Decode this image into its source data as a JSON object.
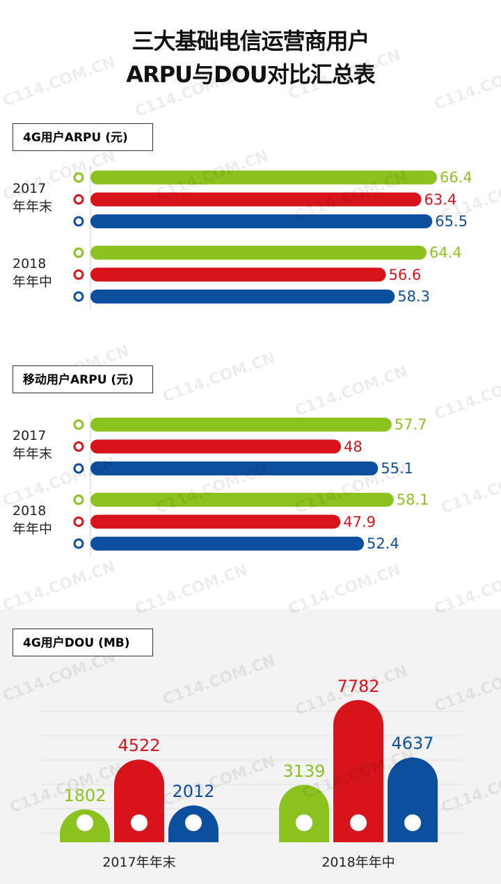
{
  "title": {
    "line1": "三大基础电信运营商用户",
    "line2": "ARPU与DOU对比汇总表"
  },
  "watermark": "C114.COM.CN",
  "chart_data": [
    {
      "type": "bar",
      "orientation": "horizontal",
      "title": "4G用户ARPU (元)",
      "categories": [
        "2017年年末",
        "2018年年中"
      ],
      "series": [
        {
          "color": "#8cc21f",
          "values": [
            66.4,
            64.4
          ]
        },
        {
          "color": "#d7141b",
          "values": [
            63.4,
            56.6
          ]
        },
        {
          "color": "#0d4f9f",
          "values": [
            65.5,
            58.3
          ]
        }
      ],
      "xlim": [
        0,
        70
      ]
    },
    {
      "type": "bar",
      "orientation": "horizontal",
      "title": "移动用户ARPU (元)",
      "categories": [
        "2017年年末",
        "2018年年中"
      ],
      "series": [
        {
          "color": "#8cc21f",
          "values": [
            57.7,
            58.1
          ]
        },
        {
          "color": "#d7141b",
          "values": [
            48,
            47.9
          ]
        },
        {
          "color": "#0d4f9f",
          "values": [
            55.1,
            52.4
          ]
        }
      ],
      "xlim": [
        0,
        70
      ]
    },
    {
      "type": "bar",
      "orientation": "vertical",
      "title": "4G用户DOU (MB)",
      "categories": [
        "2017年年末",
        "2018年年中"
      ],
      "series": [
        {
          "color": "#8cc21f",
          "values": [
            1802,
            3139
          ]
        },
        {
          "color": "#d7141b",
          "values": [
            4522,
            7782
          ]
        },
        {
          "color": "#0d4f9f",
          "values": [
            2012,
            4637
          ]
        }
      ],
      "ylim": [
        0,
        8000
      ]
    }
  ]
}
